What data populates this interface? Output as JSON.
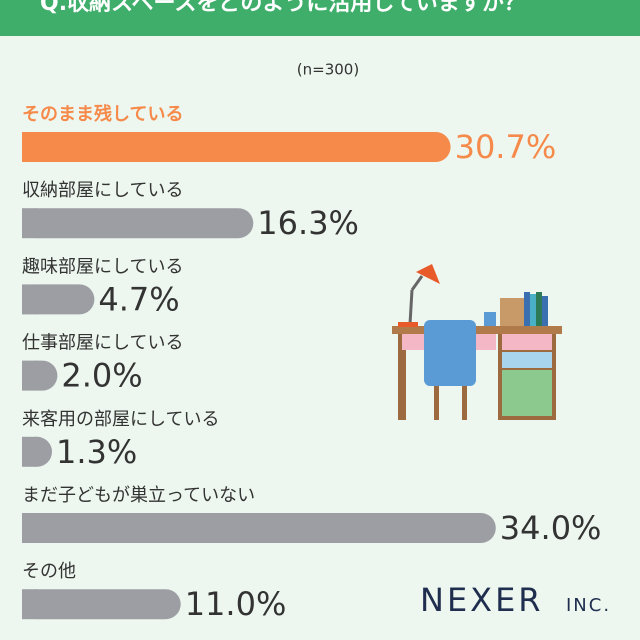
{
  "chart_data": {
    "type": "bar",
    "orientation": "horizontal",
    "title": "Q.収納スペースをどのように活用していますか？",
    "subtitle": "(n=300)",
    "categories": [
      "そのまま残している",
      "収納部屋にしている",
      "趣味部屋にしている",
      "仕事部屋にしている",
      "来客用の部屋にしている",
      "まだ子どもが巣立っていない",
      "その他"
    ],
    "values": [
      30.7,
      16.3,
      4.7,
      2.0,
      1.3,
      34.0,
      11.0
    ],
    "value_labels": [
      "30.7%",
      "16.3%",
      "4.7%",
      "2.0%",
      "1.3%",
      "34.0%",
      "11.0%"
    ],
    "colors": [
      "#f58a4b",
      "#9d9ea3",
      "#9d9ea3",
      "#9d9ea3",
      "#9d9ea3",
      "#9d9ea3",
      "#9d9ea3"
    ],
    "label_colors": [
      "#f58a4b",
      "#333333",
      "#333333",
      "#333333",
      "#333333",
      "#333333",
      "#333333"
    ]
  },
  "logo": {
    "name": "NEXER",
    "suffix": "INC."
  }
}
